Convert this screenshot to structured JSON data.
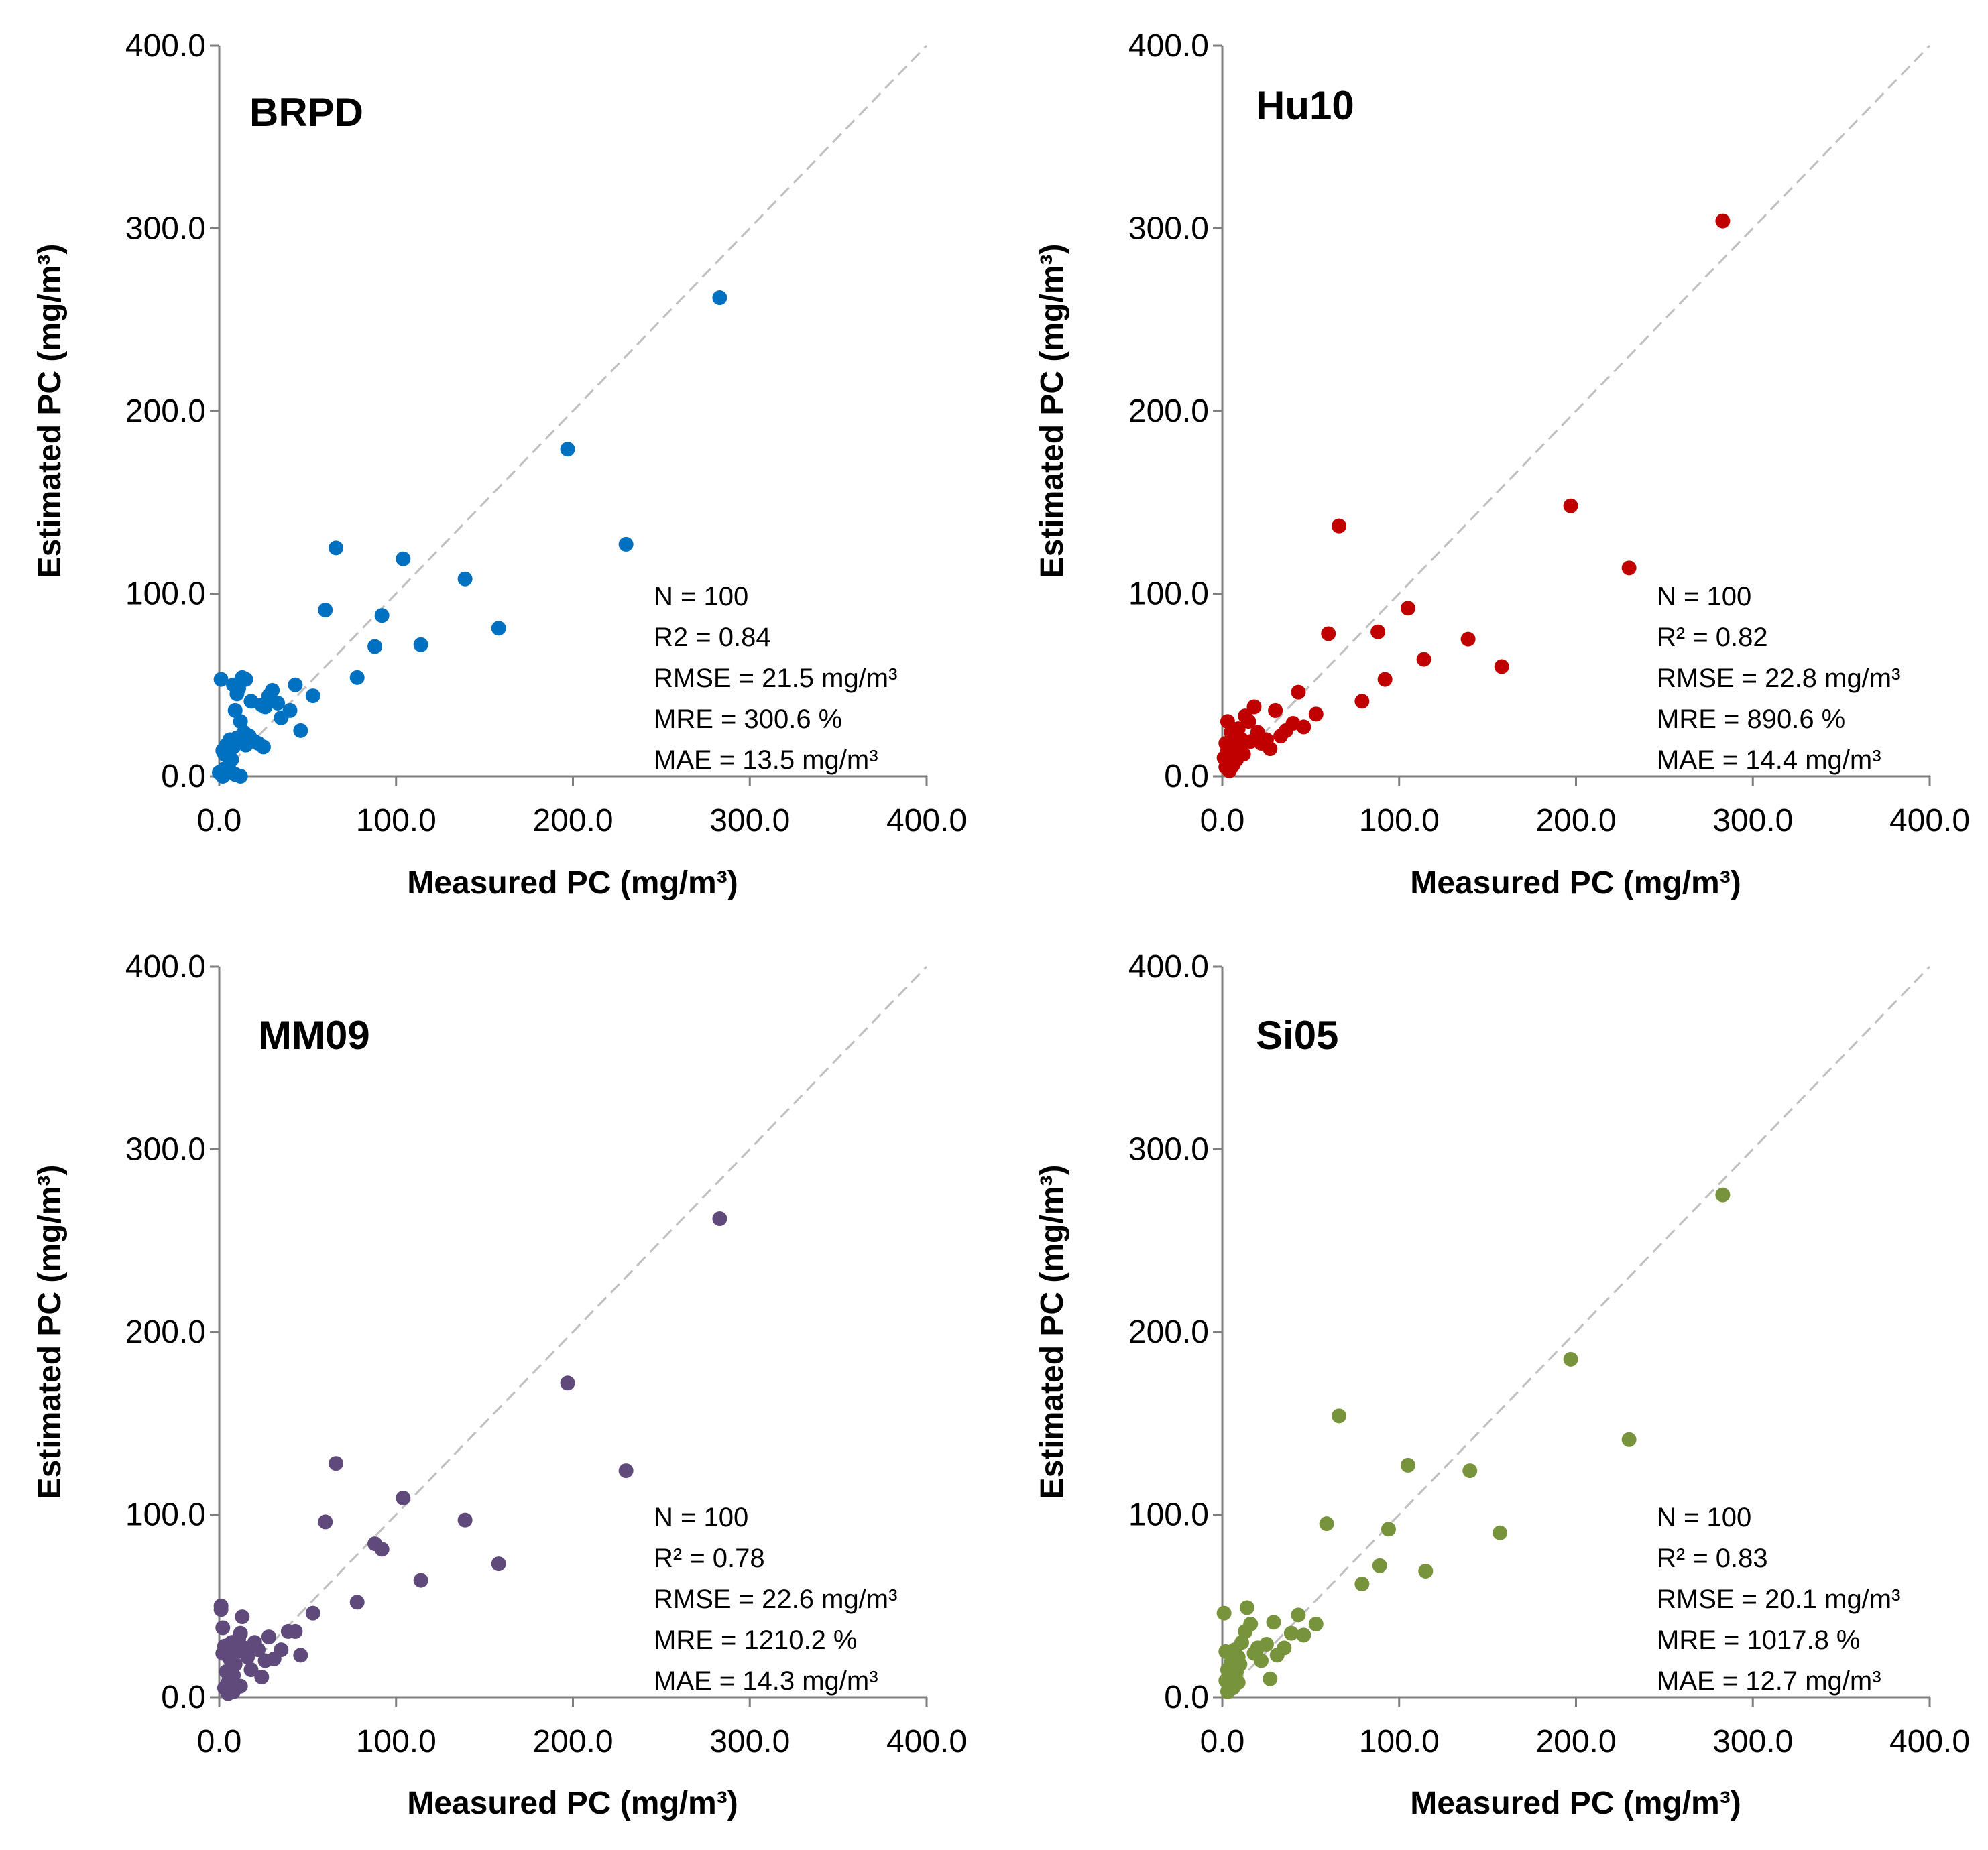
{
  "chart_data": [
    {
      "type": "scatter",
      "title": "BRPD",
      "xlabel": "Measured PC (mg/m³)",
      "ylabel": "Estimated PC (mg/m³)",
      "xlim": [
        0,
        400
      ],
      "ylim": [
        0,
        400
      ],
      "xticks": [
        "0.0",
        "100.0",
        "200.0",
        "300.0",
        "400.0"
      ],
      "yticks": [
        "0.0",
        "100.0",
        "200.0",
        "300.0",
        "400.0"
      ],
      "color": "#0070c0",
      "stats": [
        "N = 100",
        "R2 = 0.84",
        "RMSE = 21.5 mg/m³",
        "MRE = 300.6 %",
        "MAE = 13.5 mg/m³"
      ],
      "points": [
        [
          283,
          262
        ],
        [
          197,
          179
        ],
        [
          230,
          127
        ],
        [
          158,
          81
        ],
        [
          139,
          108
        ],
        [
          104,
          119
        ],
        [
          114,
          72
        ],
        [
          92,
          88
        ],
        [
          88,
          71
        ],
        [
          66,
          125
        ],
        [
          60,
          91
        ],
        [
          78,
          54
        ],
        [
          53,
          44
        ],
        [
          46,
          25
        ],
        [
          43,
          50
        ],
        [
          40,
          36
        ],
        [
          35,
          32
        ],
        [
          33,
          40
        ],
        [
          30,
          47
        ],
        [
          28,
          44
        ],
        [
          26,
          38
        ],
        [
          24,
          39
        ],
        [
          22,
          18
        ],
        [
          25,
          16
        ],
        [
          20,
          19
        ],
        [
          18,
          41
        ],
        [
          15,
          53
        ],
        [
          13,
          54
        ],
        [
          11,
          48
        ],
        [
          10,
          45
        ],
        [
          8,
          50
        ],
        [
          9,
          36
        ],
        [
          12,
          30
        ],
        [
          14,
          24
        ],
        [
          16,
          19
        ],
        [
          17,
          22
        ],
        [
          15,
          17
        ],
        [
          12,
          19
        ],
        [
          10,
          21
        ],
        [
          8,
          16
        ],
        [
          6,
          20
        ],
        [
          4,
          17
        ],
        [
          3,
          12
        ],
        [
          2,
          14
        ],
        [
          5,
          11
        ],
        [
          7,
          9
        ],
        [
          1,
          53
        ],
        [
          3,
          4
        ],
        [
          6,
          3
        ],
        [
          9,
          1
        ],
        [
          12,
          0
        ],
        [
          2,
          0
        ],
        [
          0,
          2
        ]
      ]
    },
    {
      "type": "scatter",
      "title": "Hu10",
      "xlabel": "Measured PC (mg/m³)",
      "ylabel": "Estimated PC (mg/m³)",
      "xlim": [
        0,
        400
      ],
      "ylim": [
        0,
        400
      ],
      "xticks": [
        "0.0",
        "100.0",
        "200.0",
        "300.0",
        "400.0"
      ],
      "yticks": [
        "0.0",
        "100.0",
        "200.0",
        "300.0",
        "400.0"
      ],
      "color": "#c00000",
      "stats": [
        "N = 100",
        "R² = 0.82",
        "RMSE = 22.8 mg/m³",
        "MRE = 890.6 %",
        "MAE = 14.4 mg/m³"
      ],
      "points": [
        [
          283,
          304
        ],
        [
          197,
          148
        ],
        [
          230,
          114
        ],
        [
          158,
          60
        ],
        [
          139,
          75
        ],
        [
          114,
          64
        ],
        [
          105,
          92
        ],
        [
          92,
          53
        ],
        [
          88,
          79
        ],
        [
          79,
          41
        ],
        [
          66,
          137
        ],
        [
          60,
          78
        ],
        [
          53,
          34
        ],
        [
          46,
          27
        ],
        [
          43,
          46
        ],
        [
          40,
          29
        ],
        [
          36,
          25
        ],
        [
          33,
          22
        ],
        [
          30,
          36
        ],
        [
          27,
          15
        ],
        [
          25,
          20
        ],
        [
          22,
          18
        ],
        [
          20,
          24
        ],
        [
          18,
          38
        ],
        [
          15,
          30
        ],
        [
          13,
          33
        ],
        [
          11,
          20
        ],
        [
          9,
          26
        ],
        [
          10,
          15
        ],
        [
          8,
          22
        ],
        [
          7,
          12
        ],
        [
          6,
          18
        ],
        [
          5,
          24
        ],
        [
          4,
          8
        ],
        [
          3,
          14
        ],
        [
          3,
          30
        ],
        [
          2,
          5
        ],
        [
          1,
          10
        ],
        [
          2,
          18
        ],
        [
          4,
          3
        ],
        [
          6,
          6
        ],
        [
          8,
          9
        ],
        [
          12,
          12
        ],
        [
          16,
          19
        ]
      ]
    },
    {
      "type": "scatter",
      "title": "MM09",
      "xlabel": "Measured PC (mg/m³)",
      "ylabel": "Estimated PC (mg/m³)",
      "xlim": [
        0,
        400
      ],
      "ylim": [
        0,
        400
      ],
      "xticks": [
        "0.0",
        "100.0",
        "200.0",
        "300.0",
        "400.0"
      ],
      "yticks": [
        "0.0",
        "100.0",
        "200.0",
        "300.0",
        "400.0"
      ],
      "color": "#604a7b",
      "stats": [
        "N = 100",
        "R² = 0.78",
        "RMSE = 22.6 mg/m³",
        "MRE = 1210.2 %",
        "MAE = 14.3 mg/m³"
      ],
      "points": [
        [
          283,
          262
        ],
        [
          197,
          172
        ],
        [
          230,
          124
        ],
        [
          158,
          73
        ],
        [
          139,
          97
        ],
        [
          114,
          64
        ],
        [
          104,
          109
        ],
        [
          92,
          81
        ],
        [
          88,
          84
        ],
        [
          78,
          52
        ],
        [
          66,
          128
        ],
        [
          60,
          96
        ],
        [
          53,
          46
        ],
        [
          46,
          23
        ],
        [
          43,
          36
        ],
        [
          39,
          36
        ],
        [
          35,
          26
        ],
        [
          31,
          21
        ],
        [
          28,
          33
        ],
        [
          26,
          20
        ],
        [
          24,
          11
        ],
        [
          22,
          26
        ],
        [
          20,
          30
        ],
        [
          18,
          15
        ],
        [
          16,
          22
        ],
        [
          14,
          27
        ],
        [
          12,
          35
        ],
        [
          13,
          44
        ],
        [
          11,
          32
        ],
        [
          10,
          25
        ],
        [
          9,
          18
        ],
        [
          8,
          12
        ],
        [
          7,
          30
        ],
        [
          6,
          21
        ],
        [
          5,
          8
        ],
        [
          4,
          14
        ],
        [
          3,
          28
        ],
        [
          2,
          38
        ],
        [
          1,
          50
        ],
        [
          1,
          48
        ],
        [
          2,
          24
        ],
        [
          3,
          5
        ],
        [
          5,
          2
        ],
        [
          8,
          3
        ],
        [
          12,
          6
        ]
      ]
    },
    {
      "type": "scatter",
      "title": "Si05",
      "xlabel": "Measured PC (mg/m³)",
      "ylabel": "Estimated PC (mg/m³)",
      "xlim": [
        0,
        400
      ],
      "ylim": [
        0,
        400
      ],
      "xticks": [
        "0.0",
        "100.0",
        "200.0",
        "300.0",
        "400.0"
      ],
      "yticks": [
        "0.0",
        "100.0",
        "200.0",
        "300.0",
        "400.0"
      ],
      "color": "#77933c",
      "stats": [
        "N = 100",
        "R² = 0.83",
        "RMSE = 20.1 mg/m³",
        "MRE = 1017.8 %",
        "MAE = 12.7 mg/m³"
      ],
      "points": [
        [
          283,
          275
        ],
        [
          197,
          185
        ],
        [
          230,
          141
        ],
        [
          157,
          90
        ],
        [
          140,
          124
        ],
        [
          115,
          69
        ],
        [
          105,
          127
        ],
        [
          94,
          92
        ],
        [
          89,
          72
        ],
        [
          79,
          62
        ],
        [
          66,
          154
        ],
        [
          59,
          95
        ],
        [
          53,
          40
        ],
        [
          46,
          34
        ],
        [
          43,
          45
        ],
        [
          39,
          35
        ],
        [
          35,
          27
        ],
        [
          31,
          23
        ],
        [
          29,
          41
        ],
        [
          27,
          10
        ],
        [
          25,
          29
        ],
        [
          22,
          20
        ],
        [
          20,
          27
        ],
        [
          18,
          24
        ],
        [
          16,
          40
        ],
        [
          14,
          49
        ],
        [
          13,
          36
        ],
        [
          11,
          30
        ],
        [
          10,
          18
        ],
        [
          9,
          22
        ],
        [
          8,
          14
        ],
        [
          7,
          26
        ],
        [
          6,
          11
        ],
        [
          5,
          19
        ],
        [
          4,
          7
        ],
        [
          3,
          15
        ],
        [
          2,
          25
        ],
        [
          1,
          46
        ],
        [
          2,
          9
        ],
        [
          3,
          3
        ],
        [
          6,
          5
        ],
        [
          9,
          8
        ]
      ]
    }
  ]
}
